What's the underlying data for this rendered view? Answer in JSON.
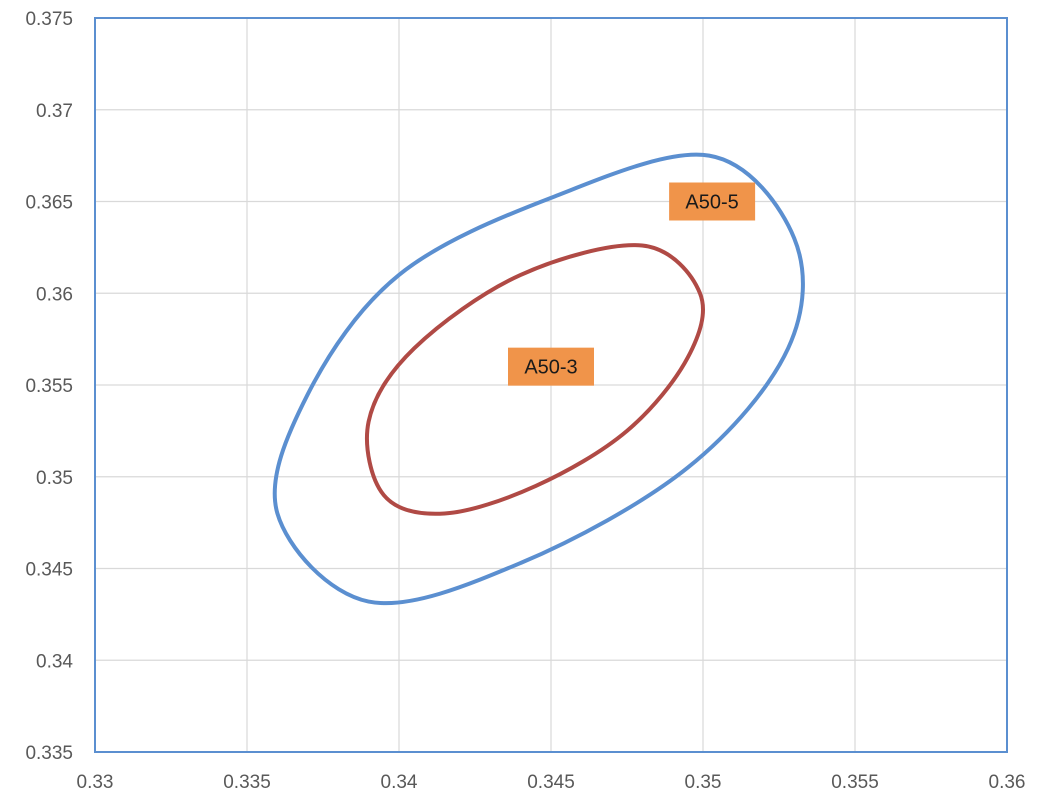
{
  "chart_data": {
    "type": "scatter",
    "title": "",
    "xlabel": "",
    "ylabel": "",
    "xlim": [
      0.33,
      0.36
    ],
    "ylim": [
      0.335,
      0.375
    ],
    "x_ticks": [
      "0.33",
      "0.335",
      "0.34",
      "0.345",
      "0.35",
      "0.355",
      "0.36"
    ],
    "y_ticks": [
      "0.335",
      "0.34",
      "0.345",
      "0.35",
      "0.355",
      "0.36",
      "0.365",
      "0.37",
      "0.375"
    ],
    "grid": true,
    "legend": "none",
    "series": [
      {
        "color": "#5b8fd0",
        "closed": true,
        "points": [
          {
            "x": 0.353,
            "y": 0.363
          },
          {
            "x": 0.3502,
            "y": 0.3675
          },
          {
            "x": 0.345,
            "y": 0.3652
          },
          {
            "x": 0.34,
            "y": 0.361
          },
          {
            "x": 0.337,
            "y": 0.3545
          },
          {
            "x": 0.336,
            "y": 0.348
          },
          {
            "x": 0.339,
            "y": 0.3432
          },
          {
            "x": 0.344,
            "y": 0.3453
          },
          {
            "x": 0.3495,
            "y": 0.3505
          },
          {
            "x": 0.3528,
            "y": 0.357
          }
        ]
      },
      {
        "color": "#b04a45",
        "closed": true,
        "points": [
          {
            "x": 0.3499,
            "y": 0.36
          },
          {
            "x": 0.348,
            "y": 0.3626
          },
          {
            "x": 0.344,
            "y": 0.361
          },
          {
            "x": 0.3405,
            "y": 0.357
          },
          {
            "x": 0.339,
            "y": 0.353
          },
          {
            "x": 0.3395,
            "y": 0.349
          },
          {
            "x": 0.3415,
            "y": 0.348
          },
          {
            "x": 0.3445,
            "y": 0.3495
          },
          {
            "x": 0.3475,
            "y": 0.3525
          },
          {
            "x": 0.3495,
            "y": 0.3565
          }
        ]
      }
    ],
    "annotations": [
      {
        "text": "A50-5",
        "x": 0.3503,
        "y": 0.365,
        "bg": "#f0944a"
      },
      {
        "text": "A50-3",
        "x": 0.345,
        "y": 0.356,
        "bg": "#f0944a"
      }
    ],
    "axis_color": "#5b8fd0",
    "grid_color": "#d9d9d9"
  }
}
